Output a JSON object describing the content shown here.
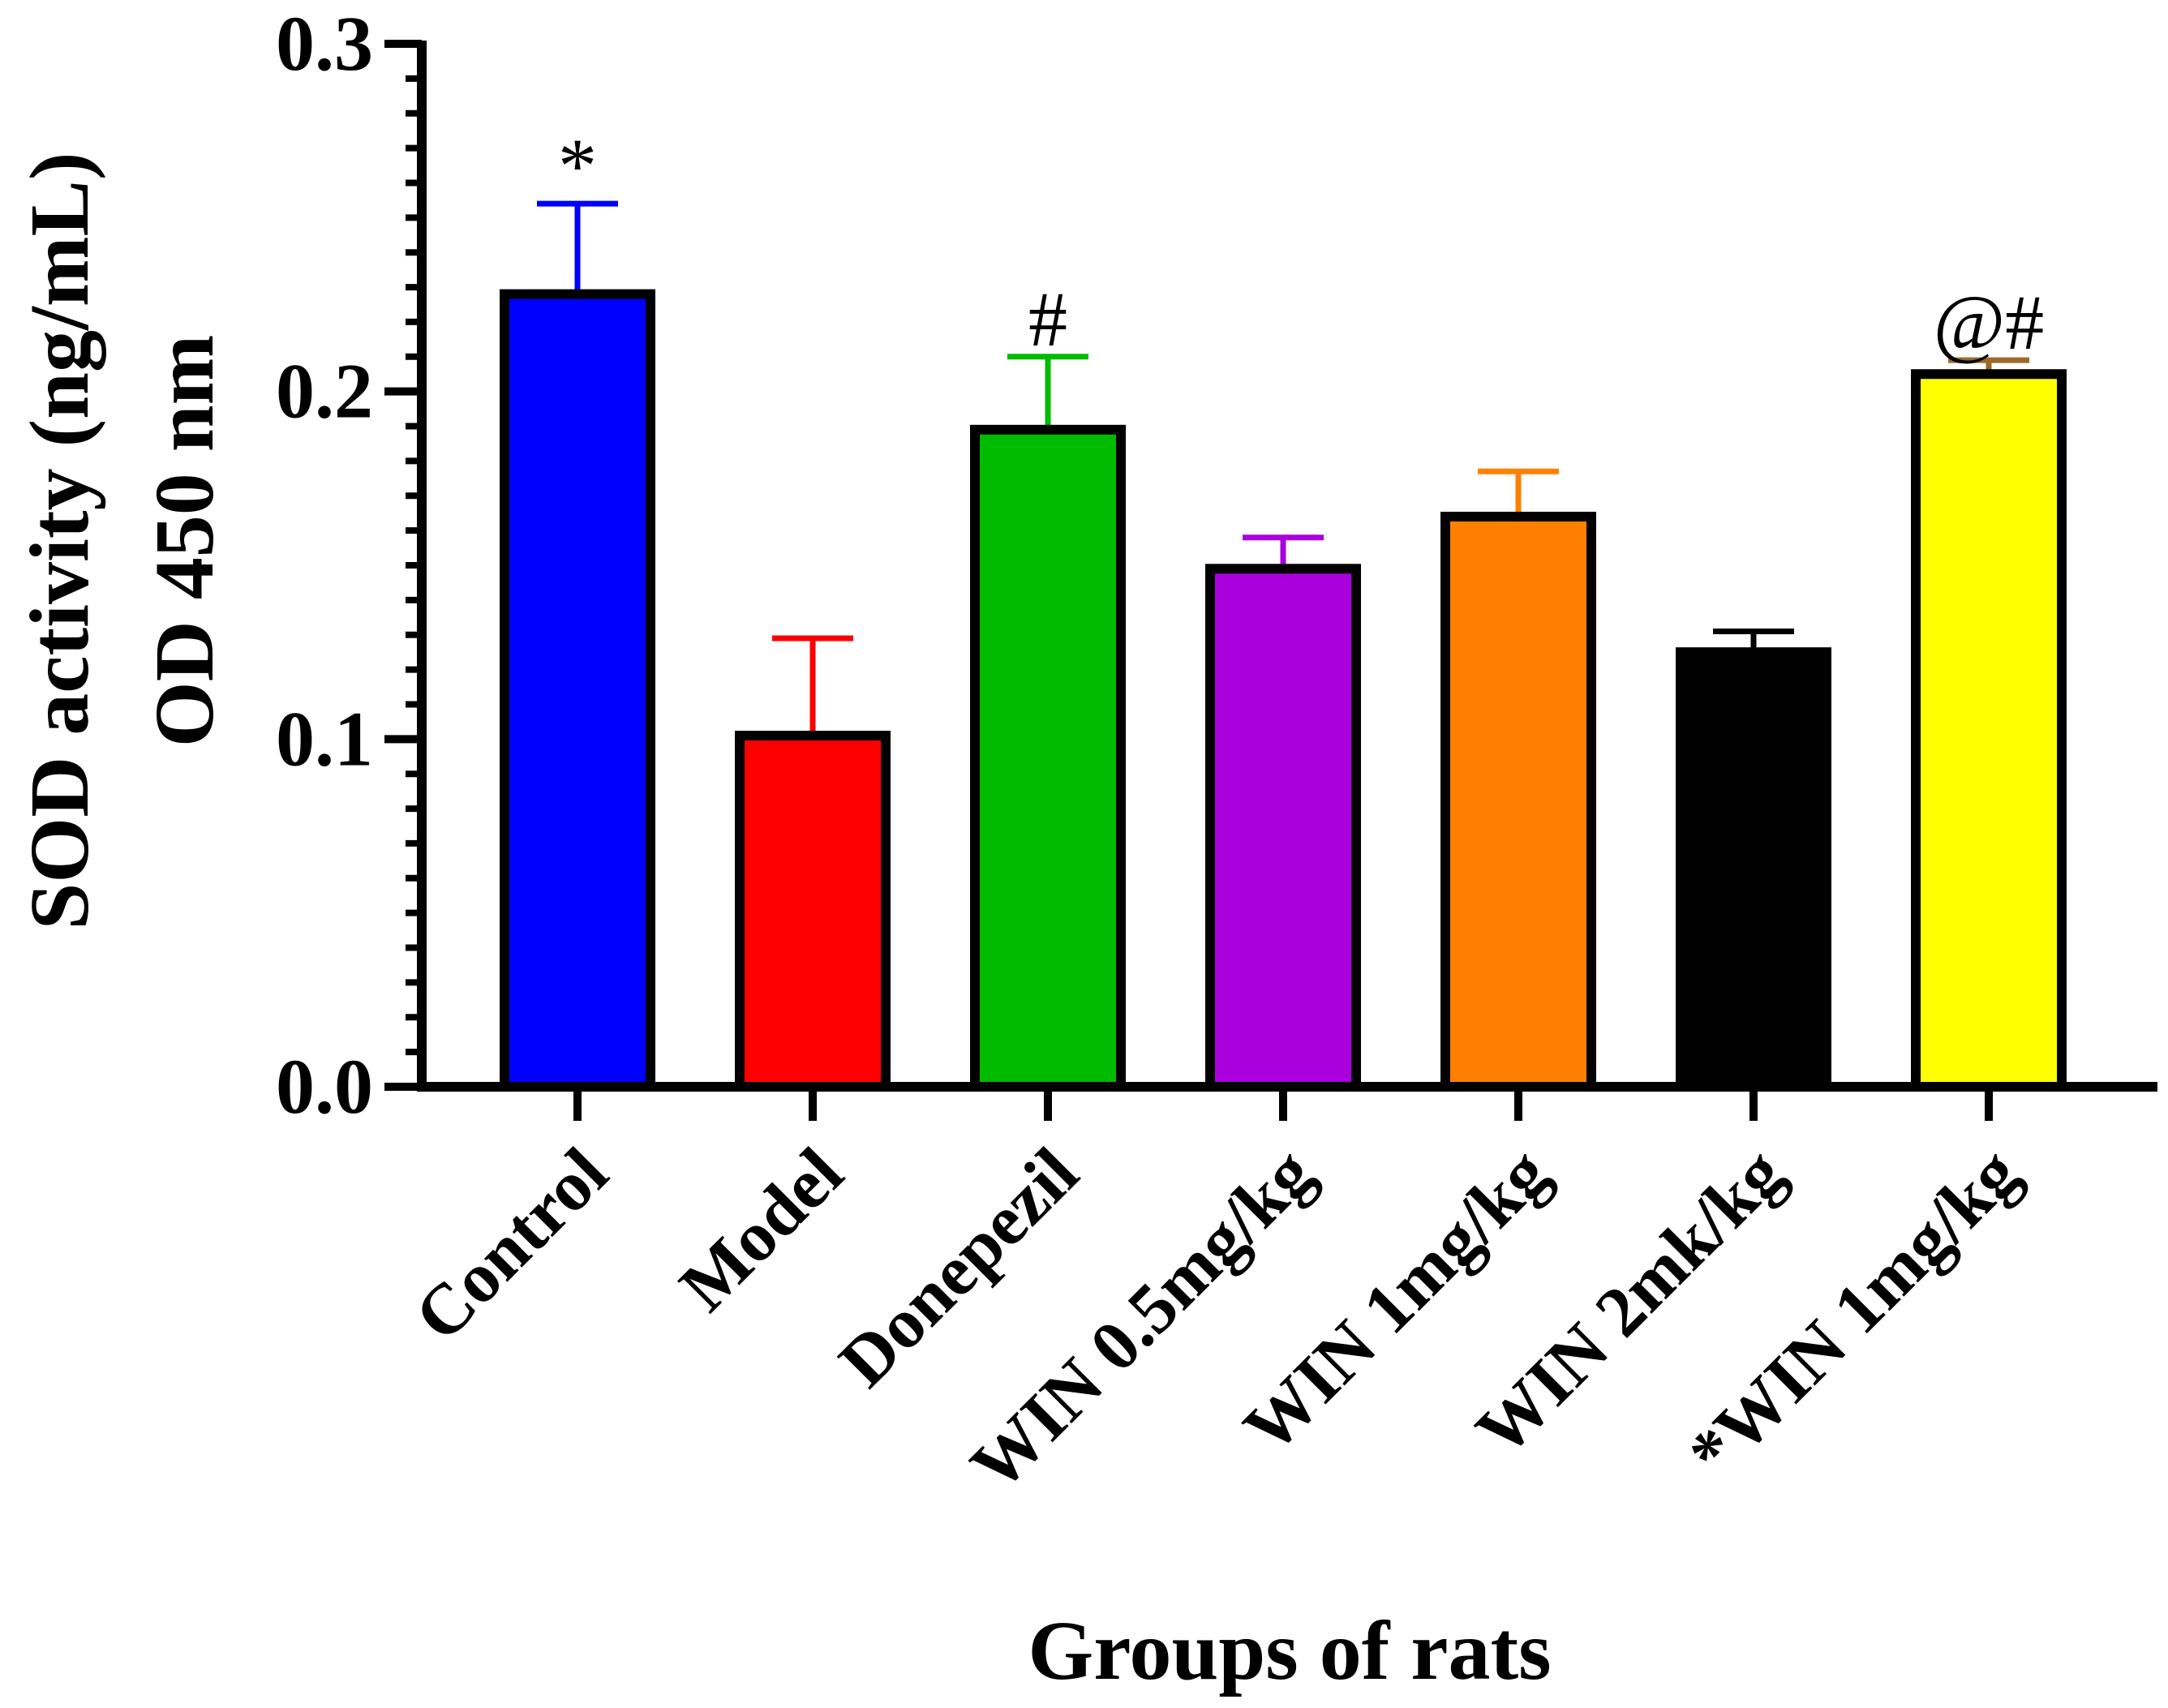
{
  "chart_data": {
    "type": "bar",
    "categories": [
      "Control",
      "Model",
      "Donepezil",
      "WIN 0.5mg/kg",
      "WIN 1mg/kg",
      "WIN 2mk/kg",
      "*WIN 1mg/kg"
    ],
    "values": [
      0.228,
      0.101,
      0.189,
      0.149,
      0.164,
      0.125,
      0.205
    ],
    "errors": [
      0.026,
      0.028,
      0.021,
      0.009,
      0.013,
      0.006,
      0.004
    ],
    "colors": [
      "#0000ff",
      "#ff0000",
      "#00bb00",
      "#aa00dd",
      "#ff8000",
      "#000000",
      "#ffff00"
    ],
    "error_colors": [
      "#0000ff",
      "#ff0000",
      "#00bb00",
      "#aa00dd",
      "#ff8000",
      "#000000",
      "#9a6a2a"
    ],
    "annotations": [
      "*",
      "",
      "#",
      "",
      "",
      "",
      "@#"
    ],
    "annotation_colors": [
      "#000000",
      "#000000",
      "#000000",
      "#000000",
      "#000000",
      "#000000",
      "#000000"
    ],
    "ylim": [
      0,
      0.3
    ],
    "yticks": [
      "0.0",
      "0.1",
      "0.2",
      "0.3"
    ],
    "ylabel_line1": "SOD activity (ng/mL)",
    "ylabel_line2": "OD 450 nm",
    "xlabel": "Groups of rats",
    "grid": false
  }
}
